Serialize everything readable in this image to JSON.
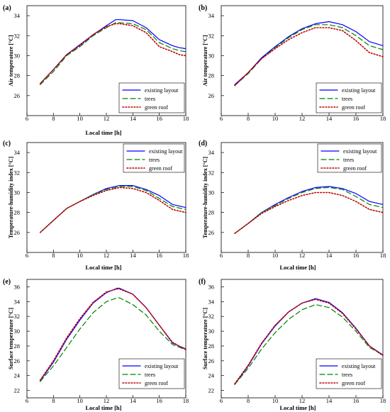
{
  "chart_data": [
    {
      "type": "line",
      "panel_label": "(a)",
      "xlabel": "Local time [h]",
      "ylabel": "Air temperature [°C]",
      "xlim": [
        6,
        18
      ],
      "ylim": [
        24,
        35
      ],
      "xticks": [
        6,
        8,
        10,
        12,
        14,
        16,
        18
      ],
      "yticks": [
        26,
        28,
        30,
        32,
        34
      ],
      "legend_position": "bottom-right",
      "series": [
        {
          "name": "existing layout",
          "color": "#0000ff",
          "style": "solid",
          "x": [
            7,
            8,
            9,
            10,
            11,
            12,
            12.7,
            13,
            14,
            15,
            16,
            17,
            17.5,
            18
          ],
          "y": [
            27.2,
            28.6,
            30.1,
            31.1,
            32.1,
            33.0,
            33.6,
            33.6,
            33.5,
            32.8,
            31.6,
            31.0,
            30.8,
            30.7
          ]
        },
        {
          "name": "trees",
          "color": "#008000",
          "style": "dashed",
          "x": [
            7,
            8,
            9,
            10,
            11,
            12,
            12.7,
            13,
            14,
            15,
            16,
            17,
            17.5,
            18
          ],
          "y": [
            27.1,
            28.4,
            30.0,
            30.9,
            32.0,
            32.8,
            33.3,
            33.3,
            33.2,
            32.6,
            31.3,
            30.7,
            30.5,
            30.4
          ]
        },
        {
          "name": "green roof",
          "color": "#c00000",
          "style": "dotted",
          "x": [
            7,
            8,
            9,
            10,
            11,
            12,
            12.7,
            13,
            14,
            15,
            16,
            17,
            17.5,
            18
          ],
          "y": [
            27.2,
            28.6,
            30.1,
            31.0,
            32.1,
            32.9,
            33.2,
            33.2,
            33.0,
            32.3,
            30.9,
            30.4,
            30.1,
            30.0
          ]
        }
      ]
    },
    {
      "type": "line",
      "panel_label": "(b)",
      "xlabel": "",
      "ylabel": "Air temperature [°C]",
      "xlim": [
        6,
        18
      ],
      "ylim": [
        24,
        35
      ],
      "xticks": [
        6,
        8,
        10,
        12,
        14,
        16,
        18
      ],
      "yticks": [
        26,
        28,
        30,
        32,
        34
      ],
      "legend_position": "bottom-right",
      "series": [
        {
          "name": "existing layout",
          "color": "#0000ff",
          "style": "solid",
          "x": [
            7,
            8,
            9,
            10,
            11,
            12,
            13,
            14,
            15,
            16,
            17,
            18
          ],
          "y": [
            27.1,
            28.3,
            29.8,
            30.9,
            31.9,
            32.7,
            33.2,
            33.4,
            33.1,
            32.4,
            31.4,
            31.0
          ]
        },
        {
          "name": "trees",
          "color": "#008000",
          "style": "dashed",
          "x": [
            7,
            8,
            9,
            10,
            11,
            12,
            13,
            14,
            15,
            16,
            17,
            18
          ],
          "y": [
            27.0,
            28.2,
            29.7,
            30.8,
            31.8,
            32.6,
            33.1,
            33.1,
            32.8,
            32.0,
            31.0,
            30.6
          ]
        },
        {
          "name": "green roof",
          "color": "#c00000",
          "style": "dotted",
          "x": [
            7,
            8,
            9,
            10,
            11,
            12,
            13,
            14,
            15,
            16,
            17,
            18
          ],
          "y": [
            27.0,
            28.3,
            29.7,
            30.7,
            31.6,
            32.3,
            32.8,
            32.8,
            32.5,
            31.5,
            30.3,
            29.9
          ]
        }
      ]
    },
    {
      "type": "line",
      "panel_label": "(c)",
      "xlabel": "Local time [h]",
      "ylabel": "Temperature-humidity index [°C]",
      "xlim": [
        6,
        18
      ],
      "ylim": [
        24,
        35
      ],
      "xticks": [
        6,
        8,
        10,
        12,
        14,
        16,
        18
      ],
      "yticks": [
        26,
        28,
        30,
        32,
        34
      ],
      "legend_position": "top-right",
      "series": [
        {
          "name": "existing layout",
          "color": "#0000ff",
          "style": "solid",
          "x": [
            7,
            8,
            9,
            10,
            11,
            12,
            13,
            14,
            15,
            16,
            17,
            18
          ],
          "y": [
            26.0,
            27.2,
            28.4,
            29.1,
            29.8,
            30.4,
            30.7,
            30.7,
            30.3,
            29.7,
            28.8,
            28.5
          ]
        },
        {
          "name": "trees",
          "color": "#008000",
          "style": "dashed",
          "x": [
            7,
            8,
            9,
            10,
            11,
            12,
            13,
            14,
            15,
            16,
            17,
            18
          ],
          "y": [
            26.0,
            27.2,
            28.4,
            29.1,
            29.8,
            30.3,
            30.6,
            30.6,
            30.2,
            29.4,
            28.6,
            28.3
          ]
        },
        {
          "name": "green roof",
          "color": "#c00000",
          "style": "dotted",
          "x": [
            7,
            8,
            9,
            10,
            11,
            12,
            13,
            14,
            15,
            16,
            17,
            18
          ],
          "y": [
            26.0,
            27.2,
            28.4,
            29.1,
            29.7,
            30.2,
            30.5,
            30.4,
            30.0,
            29.2,
            28.3,
            28.0
          ]
        }
      ]
    },
    {
      "type": "line",
      "panel_label": "(d)",
      "xlabel": "Local time [h]",
      "ylabel": "Temperature-humidity index [°C]",
      "xlim": [
        6,
        18
      ],
      "ylim": [
        24,
        35
      ],
      "xticks": [
        6,
        8,
        10,
        12,
        14,
        16,
        18
      ],
      "yticks": [
        26,
        28,
        30,
        32,
        34
      ],
      "legend_position": "top-right",
      "series": [
        {
          "name": "existing layout",
          "color": "#0000ff",
          "style": "solid",
          "x": [
            7,
            8,
            9,
            10,
            11,
            12,
            13,
            14,
            15,
            16,
            17,
            18
          ],
          "y": [
            25.9,
            26.9,
            28.0,
            28.8,
            29.5,
            30.1,
            30.5,
            30.6,
            30.4,
            29.9,
            29.1,
            28.8
          ]
        },
        {
          "name": "trees",
          "color": "#008000",
          "style": "dashed",
          "x": [
            7,
            8,
            9,
            10,
            11,
            12,
            13,
            14,
            15,
            16,
            17,
            18
          ],
          "y": [
            25.9,
            26.9,
            28.0,
            28.7,
            29.4,
            30.0,
            30.4,
            30.5,
            30.3,
            29.6,
            28.8,
            28.5
          ]
        },
        {
          "name": "green roof",
          "color": "#c00000",
          "style": "dotted",
          "x": [
            7,
            8,
            9,
            10,
            11,
            12,
            13,
            14,
            15,
            16,
            17,
            18
          ],
          "y": [
            25.9,
            26.9,
            27.9,
            28.6,
            29.2,
            29.7,
            30.0,
            30.0,
            29.7,
            29.1,
            28.3,
            28.0
          ]
        }
      ]
    },
    {
      "type": "line",
      "panel_label": "(e)",
      "xlabel": "Local time [h]",
      "ylabel": "Surface temperature [°C]",
      "xlim": [
        6,
        18
      ],
      "ylim": [
        21,
        37
      ],
      "xticks": [
        6,
        8,
        10,
        12,
        14,
        16,
        18
      ],
      "yticks": [
        22,
        24,
        26,
        28,
        30,
        32,
        34,
        36
      ],
      "legend_position": "bottom-right",
      "series": [
        {
          "name": "existing layout",
          "color": "#0000ff",
          "style": "solid",
          "x": [
            7,
            8,
            9,
            10,
            11,
            12,
            12.8,
            13,
            14,
            15,
            16,
            17,
            18
          ],
          "y": [
            23.3,
            25.8,
            28.9,
            31.5,
            33.8,
            35.2,
            35.8,
            35.8,
            35.0,
            33.2,
            30.8,
            28.4,
            27.6
          ]
        },
        {
          "name": "trees",
          "color": "#008000",
          "style": "dashed",
          "x": [
            7,
            8,
            9,
            10,
            11,
            12,
            12.8,
            13,
            14,
            15,
            16,
            17,
            18
          ],
          "y": [
            23.2,
            25.3,
            27.8,
            30.3,
            32.5,
            34.0,
            34.5,
            34.5,
            33.6,
            32.2,
            30.0,
            28.2,
            27.5
          ]
        },
        {
          "name": "green roof",
          "color": "#c00000",
          "style": "dotted",
          "x": [
            7,
            8,
            9,
            10,
            11,
            12,
            12.8,
            13,
            14,
            15,
            16,
            17,
            18
          ],
          "y": [
            23.4,
            26.0,
            29.1,
            31.7,
            33.9,
            35.3,
            35.7,
            35.7,
            35.0,
            33.2,
            30.8,
            28.5,
            27.5
          ]
        }
      ]
    },
    {
      "type": "line",
      "panel_label": "(f)",
      "xlabel": "Local time [h]",
      "ylabel": "Surface temperature [°C]",
      "xlim": [
        6,
        18
      ],
      "ylim": [
        21,
        37
      ],
      "xticks": [
        6,
        8,
        10,
        12,
        14,
        16,
        18
      ],
      "yticks": [
        22,
        24,
        26,
        28,
        30,
        32,
        34,
        36
      ],
      "legend_position": "bottom-right",
      "series": [
        {
          "name": "existing layout",
          "color": "#0000ff",
          "style": "solid",
          "x": [
            7,
            8,
            9,
            10,
            11,
            12,
            13,
            14,
            15,
            16,
            17,
            18
          ],
          "y": [
            22.8,
            25.3,
            28.3,
            30.7,
            32.6,
            33.8,
            34.4,
            33.9,
            32.5,
            30.4,
            28.0,
            26.8
          ]
        },
        {
          "name": "trees",
          "color": "#008000",
          "style": "dashed",
          "x": [
            7,
            8,
            9,
            10,
            11,
            12,
            13,
            14,
            15,
            16,
            17,
            18
          ],
          "y": [
            22.8,
            25.0,
            27.6,
            29.8,
            31.6,
            32.9,
            33.6,
            33.2,
            31.9,
            30.0,
            27.8,
            26.8
          ]
        },
        {
          "name": "green roof",
          "color": "#c00000",
          "style": "dotted",
          "x": [
            7,
            8,
            9,
            10,
            11,
            12,
            13,
            14,
            15,
            16,
            17,
            18
          ],
          "y": [
            22.9,
            25.4,
            28.4,
            30.8,
            32.6,
            33.8,
            34.3,
            33.8,
            32.4,
            30.3,
            28.0,
            26.7
          ]
        }
      ]
    }
  ]
}
